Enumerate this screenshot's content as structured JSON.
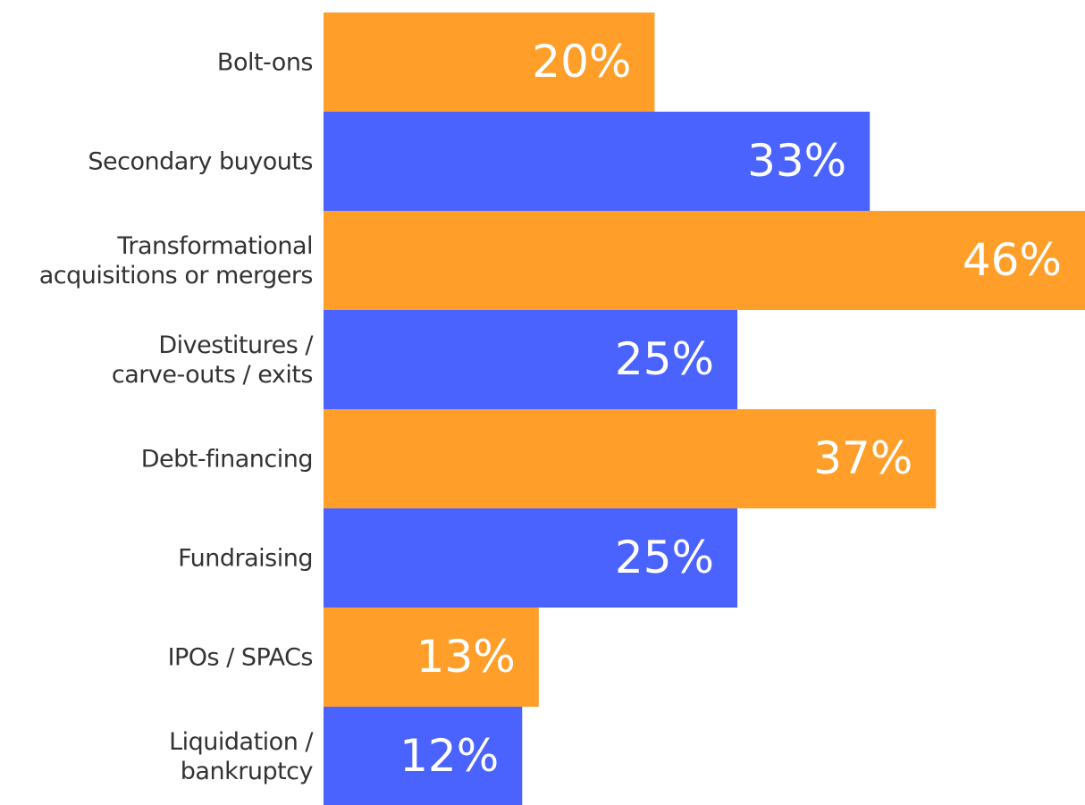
{
  "chart_data": {
    "type": "barh",
    "categories": [
      "Bolt-ons",
      "Secondary buyouts",
      "Transformational\nacquisitions or mergers",
      "Divestitures /\ncarve-outs / exits",
      "Debt-financing",
      "Fundraising",
      "IPOs / SPACs",
      "Liquidation /\nbankruptcy"
    ],
    "values": [
      20,
      33,
      46,
      25,
      37,
      25,
      13,
      12
    ],
    "value_labels": [
      "20%",
      "33%",
      "46%",
      "25%",
      "37%",
      "25%",
      "13%",
      "12%"
    ],
    "colors": [
      "#ff9f2a",
      "#4a63ff",
      "#ff9f2a",
      "#4a63ff",
      "#ff9f2a",
      "#4a63ff",
      "#ff9f2a",
      "#4a63ff"
    ]
  }
}
